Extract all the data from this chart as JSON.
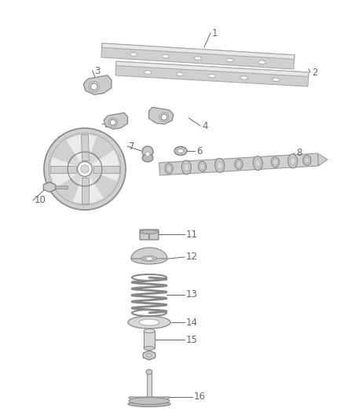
{
  "bg_color": "#ffffff",
  "line_color": "#666666",
  "label_color": "#666666",
  "label_fontsize": 8.5,
  "fig_w": 4.38,
  "fig_h": 5.33,
  "dpi": 100,
  "rail_color": "#aaaaaa",
  "rail_fill": "#d8d8d8",
  "shaft_color": "#999999",
  "shaft_fill": "#cccccc",
  "gear_color": "#888888",
  "gear_fill": "#cccccc",
  "part_color": "#888888",
  "part_fill": "#cccccc"
}
